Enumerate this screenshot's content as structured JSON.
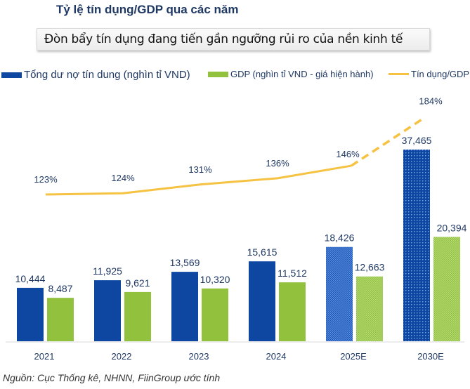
{
  "title": "Tỷ lệ tín dụng/GDP qua các năm",
  "subtitle": "Đòn bẩy tín dụng đang tiến gần ngưỡng rủi ro của nền kinh tế",
  "source": "Nguồn: Cục Thống kê, NHNN, FiinGroup ước tính",
  "colors": {
    "credit": "#0d47a1",
    "gdp": "#92c13e",
    "ratio": "#f5c242",
    "text": "#1f3864"
  },
  "chart_data": {
    "type": "bar",
    "title": "Tỷ lệ tín dụng/GDP qua các năm",
    "xlabel": "",
    "ylabel": "",
    "grid": false,
    "legend": "top",
    "categories": [
      "2021",
      "2022",
      "2023",
      "2024",
      "2025E",
      "2030E"
    ],
    "estimated": [
      false,
      false,
      false,
      false,
      true,
      true
    ],
    "series": [
      {
        "name": "Tổng dư nợ tín dung (nghìn tỉ VND)",
        "kind": "bar",
        "values": [
          10444,
          11925,
          13569,
          15615,
          18426,
          37465
        ],
        "labels": [
          "10,444",
          "11,925",
          "13,569",
          "15,615",
          "18,426",
          "37,465"
        ]
      },
      {
        "name": "GDP (nghìn tỉ VND - giá hiện hành)",
        "kind": "bar",
        "values": [
          8487,
          9621,
          10320,
          11512,
          12663,
          20394
        ],
        "labels": [
          "8,487",
          "9,621",
          "10,320",
          "11,512",
          "12,663",
          "20,394"
        ]
      },
      {
        "name": "Tín dụng/GDP",
        "kind": "line",
        "values": [
          123,
          124,
          131,
          136,
          146,
          184
        ],
        "labels": [
          "123%",
          "124%",
          "131%",
          "136%",
          "146%",
          "184%"
        ],
        "unit": "%"
      }
    ],
    "ylim_bars": [
      0,
      40000
    ],
    "ylim_line": [
      100,
      190
    ]
  }
}
